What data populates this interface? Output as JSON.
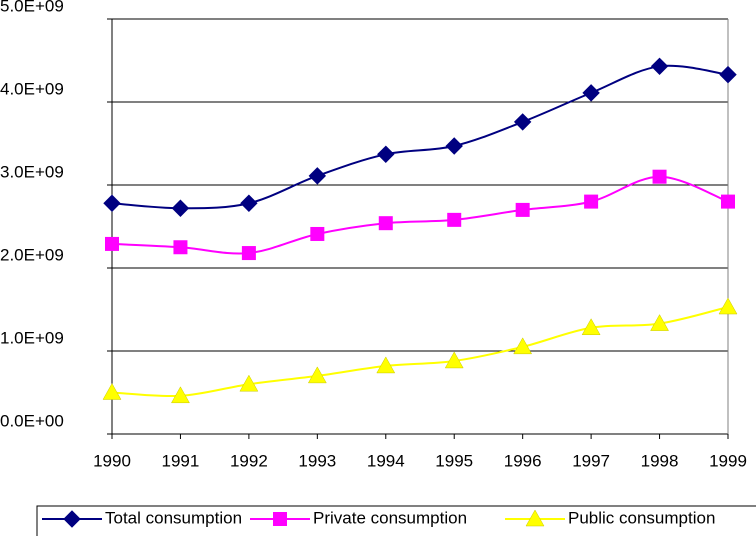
{
  "chart_data": {
    "type": "line",
    "categories": [
      "1990",
      "1991",
      "1992",
      "1993",
      "1994",
      "1995",
      "1996",
      "1997",
      "1998",
      "1999"
    ],
    "series": [
      {
        "name": "Total consumption",
        "color": "#000080",
        "marker": "diamond",
        "values": [
          2780000000,
          2720000000,
          2780000000,
          3110000000,
          3370000000,
          3470000000,
          3760000000,
          4110000000,
          4430000000,
          4330000000
        ]
      },
      {
        "name": "Private consumption",
        "color": "#ff00ff",
        "marker": "square",
        "values": [
          2290000000,
          2250000000,
          2180000000,
          2410000000,
          2540000000,
          2580000000,
          2700000000,
          2800000000,
          3100000000,
          2800000000
        ]
      },
      {
        "name": "Public consumption",
        "color": "#ffff00",
        "marker": "triangle",
        "values": [
          500000000,
          460000000,
          600000000,
          700000000,
          820000000,
          880000000,
          1050000000,
          1280000000,
          1330000000,
          1530000000
        ]
      }
    ],
    "ylim": [
      0,
      5000000000
    ],
    "yticks": [
      {
        "value": 0,
        "label": "0.0E+00"
      },
      {
        "value": 1000000000,
        "label": "1.0E+09"
      },
      {
        "value": 2000000000,
        "label": "2.0E+09"
      },
      {
        "value": 3000000000,
        "label": "3.0E+09"
      },
      {
        "value": 4000000000,
        "label": "4.0E+09"
      },
      {
        "value": 5000000000,
        "label": "5.0E+09"
      }
    ],
    "grid": true,
    "legend": "bottom"
  }
}
